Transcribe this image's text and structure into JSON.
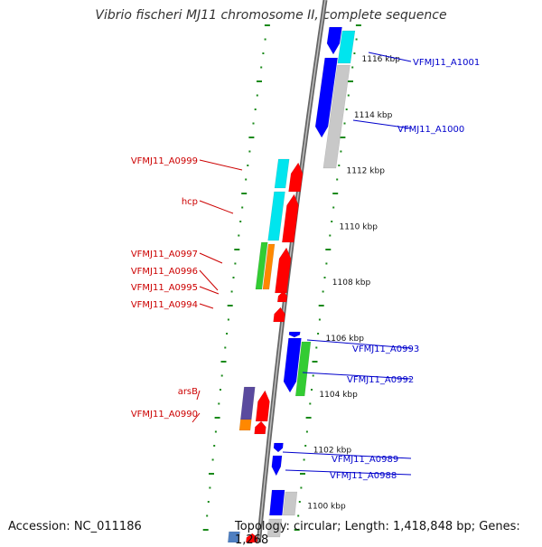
{
  "title": "Vibrio fischeri MJ11 chromosome II, complete sequence",
  "footer": {
    "accession": "Accession: NC_011186",
    "topology": "Topology: circular; Length: 1,418,848 bp; Genes: 1,268"
  },
  "colors": {
    "backbone": "#808080",
    "tick_dots": "#1a8a1a",
    "label_left": "#cc0000",
    "label_right": "#0000cc",
    "cds_red": "#ff0000",
    "cds_blue": "#0000ff",
    "cds_cyan": "#00e5ee",
    "cds_green": "#33cc33",
    "cds_orange": "#ff8800",
    "cds_purple": "#5a4a9e",
    "cds_gray": "#c8c8c8"
  },
  "ruler_labels": [
    {
      "kbp": 1116,
      "text": "1116 kbp"
    },
    {
      "kbp": 1114,
      "text": "1114 kbp"
    },
    {
      "kbp": 1112,
      "text": "1112 kbp"
    },
    {
      "kbp": 1110,
      "text": "1110 kbp"
    },
    {
      "kbp": 1108,
      "text": "1108 kbp"
    },
    {
      "kbp": 1106,
      "text": "1106 kbp"
    },
    {
      "kbp": 1104,
      "text": "1104 kbp"
    },
    {
      "kbp": 1102,
      "text": "1102 kbp"
    },
    {
      "kbp": 1100,
      "text": "1100 kbp"
    }
  ],
  "gene_labels_left": [
    {
      "text": "VFMJ11_A0999"
    },
    {
      "text": "hcp"
    },
    {
      "text": "VFMJ11_A0997"
    },
    {
      "text": "VFMJ11_A0996"
    },
    {
      "text": "VFMJ11_A0995"
    },
    {
      "text": "VFMJ11_A0994"
    },
    {
      "text": "arsB"
    },
    {
      "text": "VFMJ11_A0990"
    }
  ],
  "gene_labels_right": [
    {
      "text": "VFMJ11_A1001"
    },
    {
      "text": "VFMJ11_A1000"
    },
    {
      "text": "VFMJ11_A0993"
    },
    {
      "text": "VFMJ11_A0992"
    },
    {
      "text": "VFMJ11_A0989"
    },
    {
      "text": "VFMJ11_A0988"
    }
  ]
}
